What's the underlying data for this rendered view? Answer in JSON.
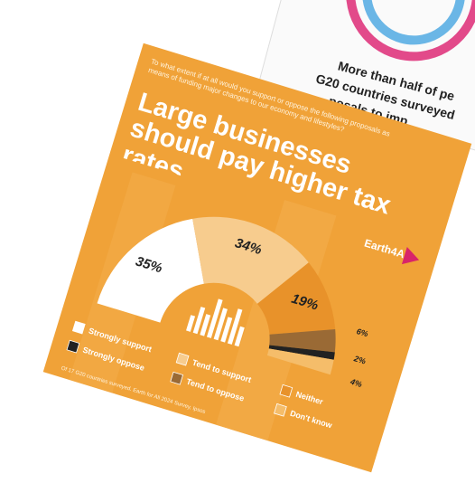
{
  "background_card": {
    "lines": [
      "More than half of pe",
      "G20 countries surveyed",
      "posals to imp"
    ]
  },
  "chart_data": {
    "type": "pie",
    "question": "To what extent if at all would you support or oppose the following proposals as means of funding major changes to our economy and lifestyles?",
    "title": "Large businesses should pay higher tax rates",
    "logo": "Earth4All",
    "categories": [
      "Strongly support",
      "Tend to support",
      "Neither",
      "Tend to oppose",
      "Strongly oppose",
      "Don't know"
    ],
    "values": [
      35,
      34,
      19,
      6,
      2,
      4
    ],
    "value_labels": [
      "35%",
      "34%",
      "19%",
      "6%",
      "2%",
      "4%"
    ],
    "colors": [
      "#ffffff",
      "#f7cc8e",
      "#e8922a",
      "#9a6a35",
      "#222222",
      "#f5bd6a"
    ],
    "note": "Of 17 G20 countries surveyed. Earth for All 2024 Survey, Ipsos"
  }
}
